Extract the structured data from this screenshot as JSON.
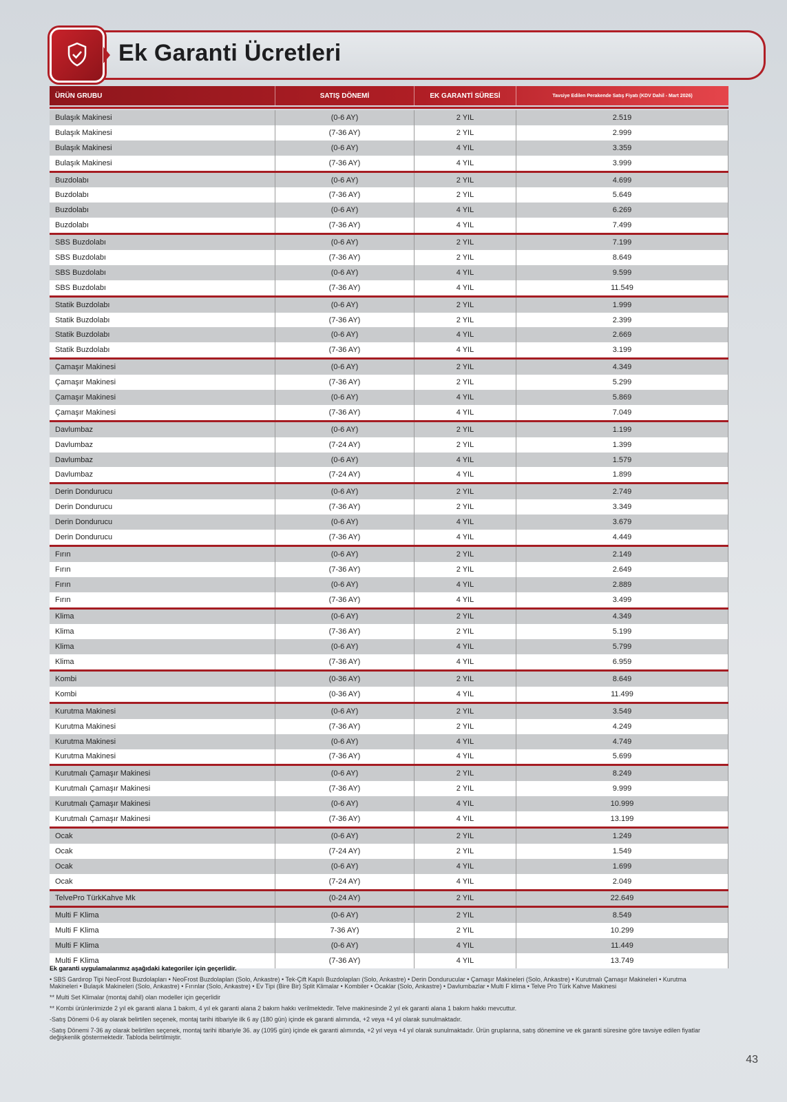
{
  "title": "Ek Garanti Ücretleri",
  "icon": "shield-check-icon",
  "accent": "#b01e25",
  "headers": [
    "ÜRÜN GRUBU",
    "SATIŞ DÖNEMİ",
    "EK GARANTİ SÜRESİ",
    "Tavsiye Edilen Perakende Satış Fiyatı (KDV Dahil - Mart 2026)"
  ],
  "groups": [
    {
      "product": "Bulaşık Makinesi",
      "rows": [
        [
          "(0-6 AY)",
          "2 YIL",
          "2.519"
        ],
        [
          "(7-36 AY)",
          "2 YIL",
          "2.999"
        ],
        [
          "(0-6 AY)",
          "4 YIL",
          "3.359"
        ],
        [
          "(7-36 AY)",
          "4 YIL",
          "3.999"
        ]
      ]
    },
    {
      "product": "Buzdolabı",
      "rows": [
        [
          "(0-6 AY)",
          "2 YIL",
          "4.699"
        ],
        [
          "(7-36 AY)",
          "2 YIL",
          "5.649"
        ],
        [
          "(0-6 AY)",
          "4 YIL",
          "6.269"
        ],
        [
          "(7-36 AY)",
          "4 YIL",
          "7.499"
        ]
      ]
    },
    {
      "product": "SBS Buzdolabı",
      "rows": [
        [
          "(0-6 AY)",
          "2 YIL",
          "7.199"
        ],
        [
          "(7-36 AY)",
          "2 YIL",
          "8.649"
        ],
        [
          "(0-6 AY)",
          "4 YIL",
          "9.599"
        ],
        [
          "(7-36 AY)",
          "4 YIL",
          "11.549"
        ]
      ]
    },
    {
      "product": "Statik Buzdolabı",
      "rows": [
        [
          "(0-6 AY)",
          "2 YIL",
          "1.999"
        ],
        [
          "(7-36 AY)",
          "2 YIL",
          "2.399"
        ],
        [
          "(0-6 AY)",
          "4 YIL",
          "2.669"
        ],
        [
          "(7-36 AY)",
          "4 YIL",
          "3.199"
        ]
      ]
    },
    {
      "product": "Çamaşır Makinesi",
      "rows": [
        [
          "(0-6 AY)",
          "2 YIL",
          "4.349"
        ],
        [
          "(7-36 AY)",
          "2 YIL",
          "5.299"
        ],
        [
          "(0-6 AY)",
          "4 YIL",
          "5.869"
        ],
        [
          "(7-36 AY)",
          "4 YIL",
          "7.049"
        ]
      ]
    },
    {
      "product": "Davlumbaz",
      "rows": [
        [
          "(0-6 AY)",
          "2 YIL",
          "1.199"
        ],
        [
          "(7-24 AY)",
          "2 YIL",
          "1.399"
        ],
        [
          "(0-6 AY)",
          "4 YIL",
          "1.579"
        ],
        [
          "(7-24 AY)",
          "4 YIL",
          "1.899"
        ]
      ]
    },
    {
      "product": "Derin Dondurucu",
      "rows": [
        [
          "(0-6 AY)",
          "2 YIL",
          "2.749"
        ],
        [
          "(7-36 AY)",
          "2 YIL",
          "3.349"
        ],
        [
          "(0-6 AY)",
          "4 YIL",
          "3.679"
        ],
        [
          "(7-36 AY)",
          "4 YIL",
          "4.449"
        ]
      ]
    },
    {
      "product": "Fırın",
      "rows": [
        [
          "(0-6 AY)",
          "2 YIL",
          "2.149"
        ],
        [
          "(7-36 AY)",
          "2 YIL",
          "2.649"
        ],
        [
          "(0-6 AY)",
          "4 YIL",
          "2.889"
        ],
        [
          "(7-36 AY)",
          "4 YIL",
          "3.499"
        ]
      ]
    },
    {
      "product": "Klima",
      "rows": [
        [
          "(0-6 AY)",
          "2 YIL",
          "4.349"
        ],
        [
          "(7-36 AY)",
          "2 YIL",
          "5.199"
        ],
        [
          "(0-6 AY)",
          "4 YIL",
          "5.799"
        ],
        [
          "(7-36 AY)",
          "4 YIL",
          "6.959"
        ]
      ]
    },
    {
      "product": "Kombi",
      "rows": [
        [
          "(0-36 AY)",
          "2 YIL",
          "8.649"
        ],
        [
          "(0-36 AY)",
          "4 YIL",
          "11.499"
        ]
      ]
    },
    {
      "product": "Kurutma Makinesi",
      "rows": [
        [
          "(0-6 AY)",
          "2 YIL",
          "3.549"
        ],
        [
          "(7-36 AY)",
          "2 YIL",
          "4.249"
        ],
        [
          "(0-6 AY)",
          "4 YIL",
          "4.749"
        ],
        [
          "(7-36 AY)",
          "4 YIL",
          "5.699"
        ]
      ]
    },
    {
      "product": "Kurutmalı Çamaşır Makinesi",
      "rows": [
        [
          "(0-6 AY)",
          "2 YIL",
          "8.249"
        ],
        [
          "(7-36 AY)",
          "2 YIL",
          "9.999"
        ],
        [
          "(0-6 AY)",
          "4 YIL",
          "10.999"
        ],
        [
          "(7-36 AY)",
          "4 YIL",
          "13.199"
        ]
      ]
    },
    {
      "product": "Ocak",
      "rows": [
        [
          "(0-6 AY)",
          "2 YIL",
          "1.249"
        ],
        [
          "(7-24 AY)",
          "2 YIL",
          "1.549"
        ],
        [
          "(0-6 AY)",
          "4 YIL",
          "1.699"
        ],
        [
          "(7-24 AY)",
          "4 YIL",
          "2.049"
        ]
      ]
    },
    {
      "product": "TelvePro TürkKahve Mk",
      "rows": [
        [
          "(0-24 AY)",
          "2 YIL",
          "22.649"
        ]
      ]
    },
    {
      "product": "Multi F Klima",
      "rows": [
        [
          "(0-6 AY)",
          "2 YIL",
          "8.549"
        ],
        [
          "7-36 AY)",
          "2 YIL",
          "10.299"
        ],
        [
          "(0-6 AY)",
          "4 YIL",
          "11.449"
        ],
        [
          "(7-36 AY)",
          "4 YIL",
          "13.749"
        ]
      ]
    }
  ],
  "notes": {
    "heading": "Ek garanti uygulamalarımız aşağıdaki kategoriler için geçerlidir.",
    "categories": "• SBS Gardırop Tipi NeoFrost Buzdolapları • NeoFrost Buzdolapları (Solo, Ankastre) • Tek-Çift Kapılı Buzdolapları (Solo, Ankastre) • Derin Dondurucular • Çamaşır Makineleri (Solo, Ankastre) • Kurutmalı Çamaşır Makineleri • Kurutma Makineleri • Bulaşık Makineleri (Solo, Ankastre) • Fırınlar (Solo, Ankastre) • Ev Tipi (Bire Bir) Split Klimalar • Kombiler • Ocaklar (Solo, Ankastre) • Davlumbazlar • Multi F klima • Telve Pro Türk Kahve Makinesi",
    "multi": "** Multi Set Klimalar (montaj dahil) olan modeller için geçerlidir",
    "kombi": "** Kombi ürünlerimizde 2 yıl ek garanti alana 1 bakım, 4 yıl ek garanti alana 2 bakım hakkı verilmektedir. Telve makinesinde 2 yıl ek garanti alana 1 bakım hakkı mevcuttur.",
    "period1": "-Satış Dönemi 0-6 ay olarak belirtilen seçenek, montaj tarihi itibariyle ilk 6 ay (180 gün) içinde ek garanti alımında, +2 veya +4 yıl olarak sunulmaktadır.",
    "period2": "-Satış Dönemi 7-36 ay olarak belirtilen seçenek, montaj tarihi itibariyle 36. ay (1095 gün) içinde ek garanti alımında, +2 yıl veya +4 yıl olarak sunulmaktadır. Ürün gruplarına, satış dönemine ve ek garanti süresine göre tavsiye edilen fiyatlar değişkenlik göstermektedir. Tabloda belirtilmiştir."
  },
  "page_number": "43"
}
